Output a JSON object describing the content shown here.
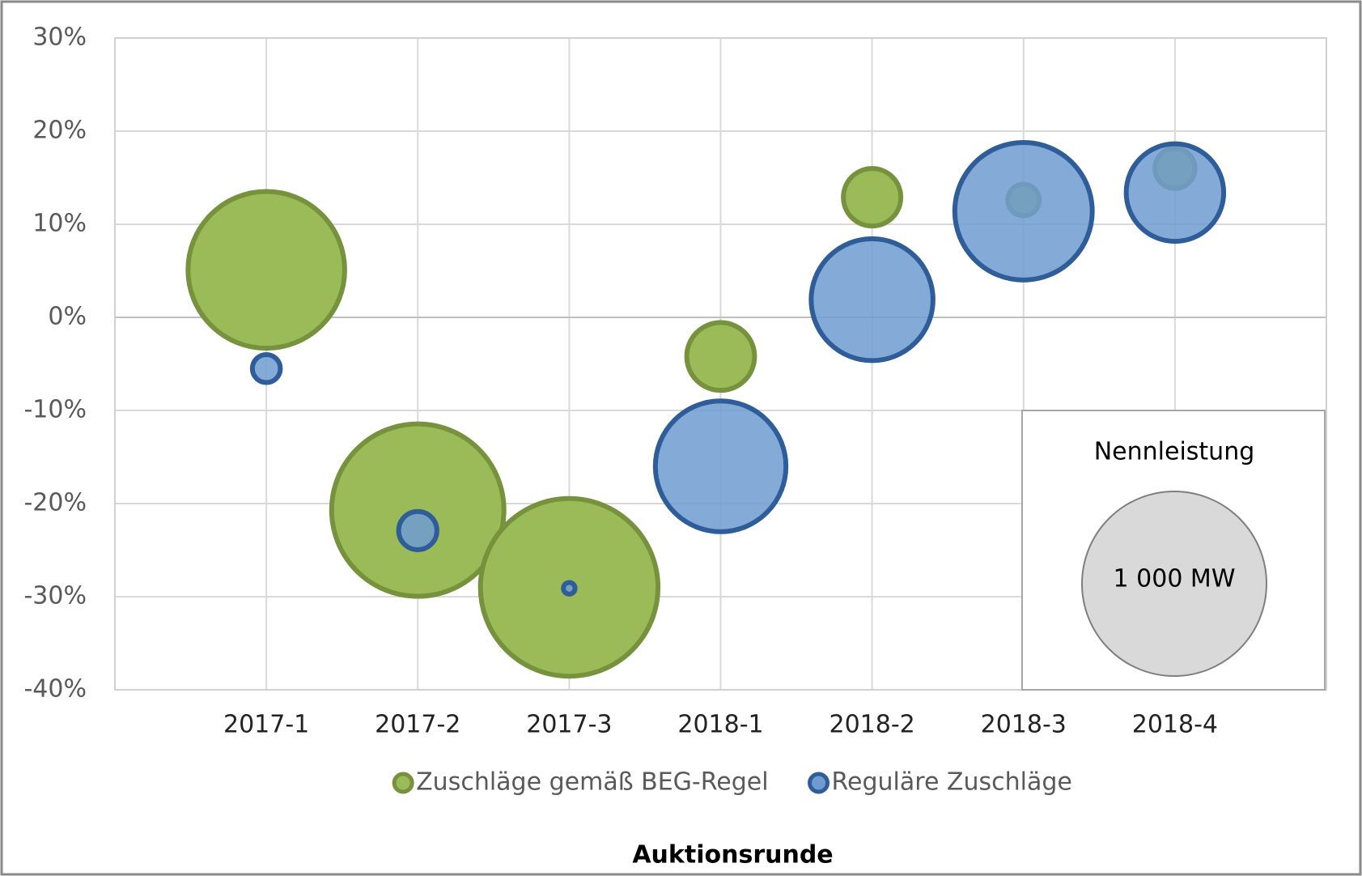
{
  "chart_data": {
    "type": "bubble",
    "x_label": "Auktionsrunde",
    "categories": [
      "2017-1",
      "2017-2",
      "2017-3",
      "2018-1",
      "2018-2",
      "2018-3",
      "2018-4"
    ],
    "series": [
      {
        "name": "Zuschläge gemäß BEG-Regel",
        "color": "#9bbb59",
        "edge": "#76923c",
        "values": [
          5.1,
          -20.7,
          -29.0,
          -4.2,
          12.9,
          12.6,
          16.0
        ],
        "sizes": [
          721,
          872,
          926,
          135,
          97,
          29,
          47
        ]
      },
      {
        "name": "Reguläre Zuschläge",
        "color": "#6f9bd1",
        "edge": "#2f5d9a",
        "values": [
          -5.5,
          -22.9,
          -29.1,
          -16.0,
          1.9,
          11.4,
          13.4
        ],
        "sizes": [
          23,
          43,
          4,
          501,
          436,
          555,
          279
        ]
      }
    ],
    "ylim": [
      -40,
      30
    ],
    "yticks": [
      {
        "value": -40,
        "label": "-40%"
      },
      {
        "value": -30,
        "label": "-30%"
      },
      {
        "value": -20,
        "label": "-20%"
      },
      {
        "value": -10,
        "label": "-10%"
      },
      {
        "value": 0,
        "label": "0%"
      },
      {
        "value": 10,
        "label": "10%"
      },
      {
        "value": 20,
        "label": "20%"
      },
      {
        "value": 30,
        "label": "30%"
      }
    ],
    "grid": true,
    "size_reference": {
      "title": "Nennleistung",
      "value": 1000,
      "label": "1 000 MW"
    }
  }
}
